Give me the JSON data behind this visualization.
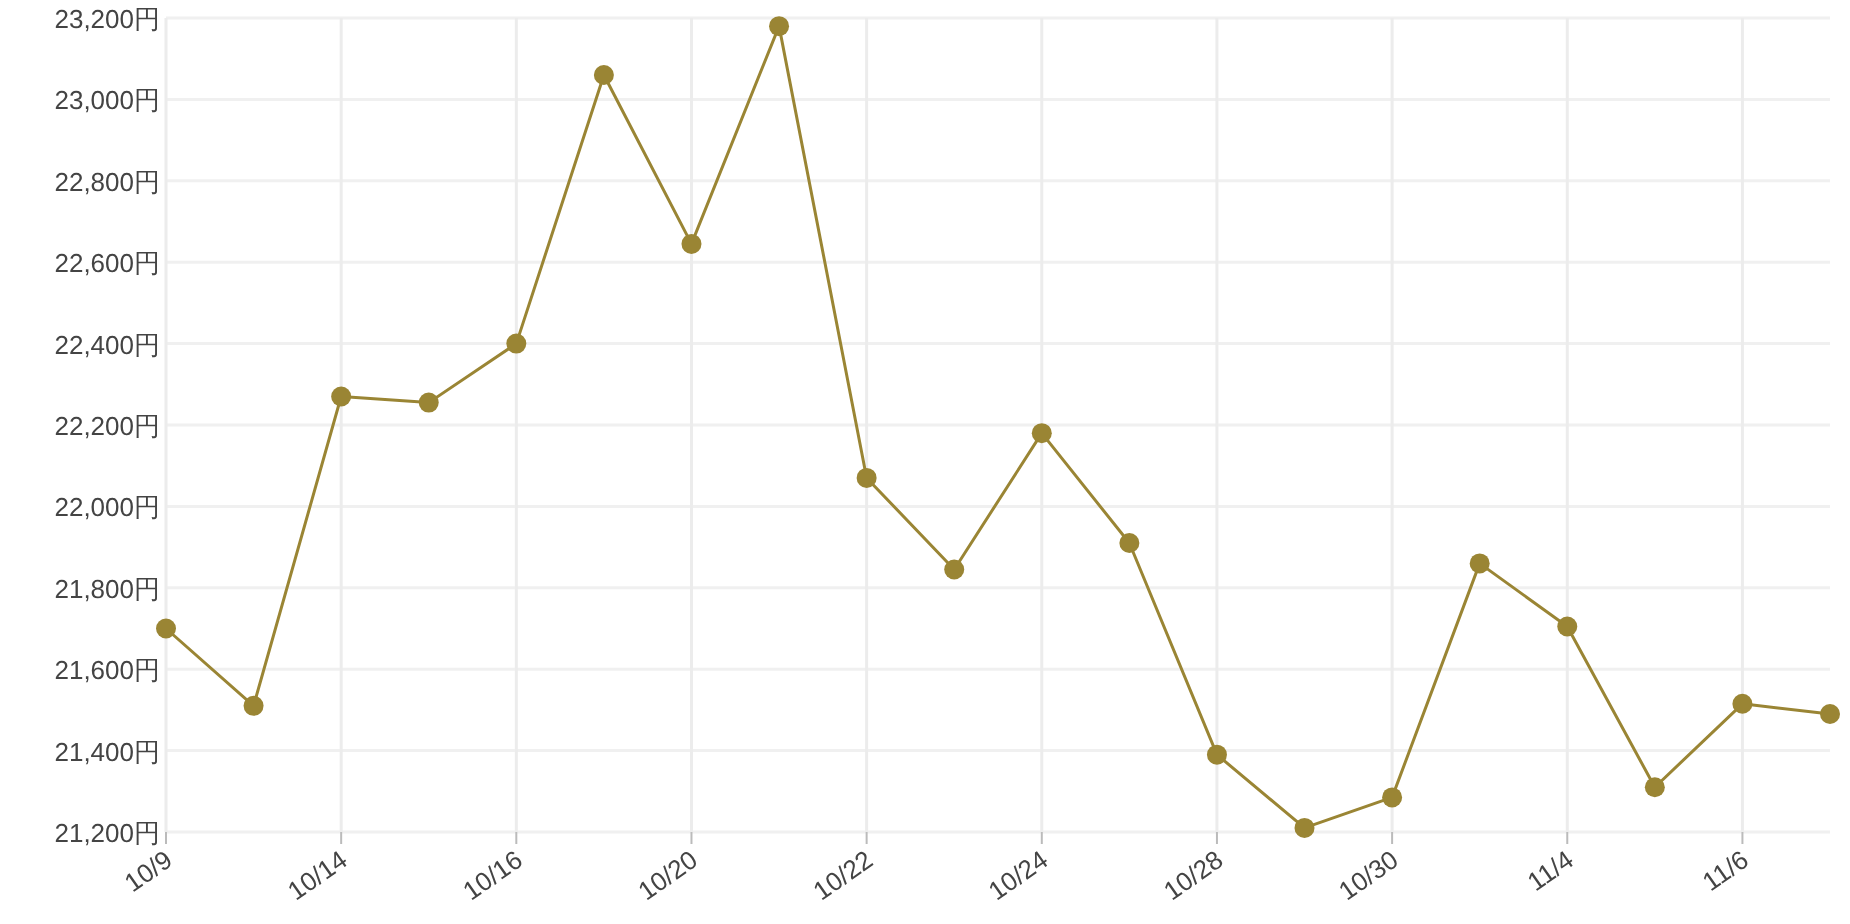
{
  "chart_data": {
    "type": "line",
    "categories": [
      "10/9",
      null,
      "10/14",
      null,
      "10/16",
      null,
      "10/20",
      null,
      "10/22",
      null,
      "10/24",
      null,
      "10/28",
      null,
      "10/30",
      null,
      "11/4",
      null,
      "11/6",
      null
    ],
    "series": [
      {
        "color": "#9a8534",
        "values": [
          21700,
          21510,
          22270,
          22255,
          22400,
          23060,
          22645,
          23180,
          22070,
          21845,
          22180,
          21910,
          21390,
          21210,
          21285,
          21860,
          21705,
          21310,
          21515,
          21490
        ]
      }
    ],
    "ylim": [
      21200,
      23200
    ],
    "yticks": [
      {
        "value": 21200,
        "label": "21,200円"
      },
      {
        "value": 21400,
        "label": "21,400円"
      },
      {
        "value": 21600,
        "label": "21,600円"
      },
      {
        "value": 21800,
        "label": "21,800円"
      },
      {
        "value": 22000,
        "label": "22,000円"
      },
      {
        "value": 22200,
        "label": "22,200円"
      },
      {
        "value": 22400,
        "label": "22,400円"
      },
      {
        "value": 22600,
        "label": "22,600円"
      },
      {
        "value": 22800,
        "label": "22,800円"
      },
      {
        "value": 23000,
        "label": "23,000円"
      },
      {
        "value": 23200,
        "label": "23,200円"
      }
    ],
    "grid": true,
    "marker": "circle",
    "line_style": "solid"
  }
}
